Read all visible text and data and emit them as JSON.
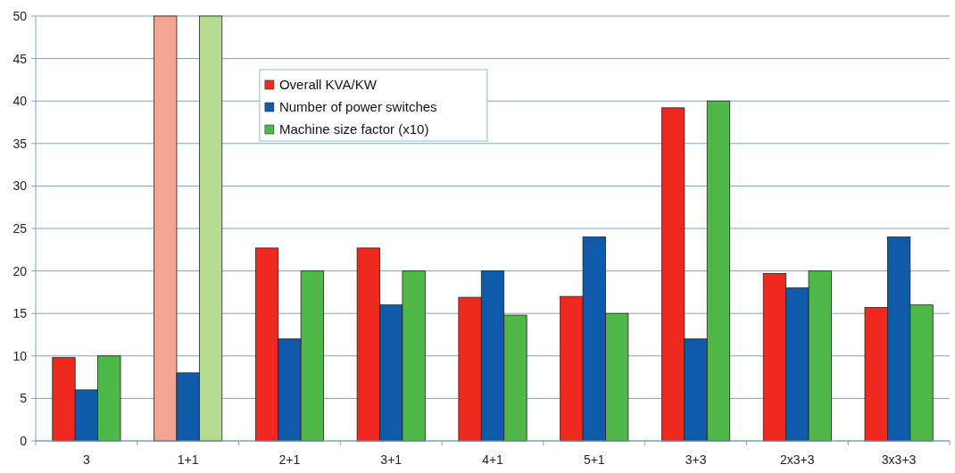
{
  "chart_data": {
    "type": "bar",
    "categories": [
      "3",
      "1+1",
      "2+1",
      "3+1",
      "4+1",
      "5+1",
      "3+3",
      "2x3+3",
      "3x3+3"
    ],
    "series": [
      {
        "name": "Overall KVA/KW",
        "color": "#ee2a1e",
        "colors": [
          "#ee2a1e",
          "#f4a493",
          "#ee2a1e",
          "#ee2a1e",
          "#ee2a1e",
          "#ee2a1e",
          "#ee2a1e",
          "#ee2a1e",
          "#ee2a1e"
        ],
        "values": [
          9.8,
          50,
          22.7,
          22.7,
          16.9,
          17,
          39.2,
          19.7,
          15.7
        ]
      },
      {
        "name": "Number of power switches",
        "color": "#0f5aa9",
        "values": [
          6,
          8,
          12,
          16,
          20,
          24,
          12,
          18,
          24
        ]
      },
      {
        "name": "Machine size factor (x10)",
        "color": "#4fb848",
        "colors": [
          "#4fb848",
          "#b3dc8f",
          "#4fb848",
          "#4fb848",
          "#4fb848",
          "#4fb848",
          "#4fb848",
          "#4fb848",
          "#4fb848"
        ],
        "values": [
          10,
          50,
          20,
          20,
          14.8,
          15,
          40,
          20,
          16
        ]
      }
    ],
    "ylim": [
      0,
      50
    ],
    "yticks": [
      0,
      5,
      10,
      15,
      20,
      25,
      30,
      35,
      40,
      45,
      50
    ],
    "grid": "y",
    "legend": "top left"
  }
}
